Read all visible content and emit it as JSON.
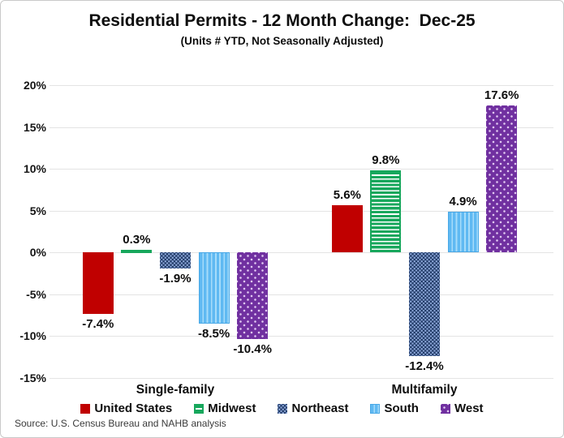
{
  "figure": {
    "title": "Residential Permits - 12 Month Change:  Dec-25",
    "subtitle": "(Units # YTD, Not Seasonally Adjusted)",
    "source": "Source: U.S. Census Bureau and NAHB analysis"
  },
  "colors": {
    "united_states": "#C00000",
    "midwest": "#17A75C",
    "northeast": "#1F3864",
    "south": "#5FB9F2",
    "west": "#7030A0",
    "gridline": "#E4E4E4",
    "border": "#C9C9C9"
  },
  "chart_data": {
    "type": "bar",
    "title": "Residential Permits - 12 Month Change:  Dec-25",
    "subtitle": "(Units # YTD, Not Seasonally Adjusted)",
    "categories": [
      "Single-family",
      "Multifamily"
    ],
    "series": [
      {
        "name": "United States",
        "color": "#C00000",
        "pattern": "solid",
        "values": [
          -7.4,
          5.6
        ]
      },
      {
        "name": "Midwest",
        "color": "#17A75C",
        "pattern": "horizontal-stripes",
        "values": [
          0.3,
          9.8
        ]
      },
      {
        "name": "Northeast",
        "color": "#1F3864",
        "pattern": "checker-dots",
        "values": [
          -1.9,
          -12.4
        ]
      },
      {
        "name": "South",
        "color": "#5FB9F2",
        "pattern": "vertical-stripes",
        "values": [
          -8.5,
          4.9
        ]
      },
      {
        "name": "West",
        "color": "#7030A0",
        "pattern": "dots",
        "values": [
          -10.4,
          17.6
        ]
      }
    ],
    "labels": [
      [
        "-7.4%",
        "0.3%",
        "-1.9%",
        "-8.5%",
        "-10.4%"
      ],
      [
        "5.6%",
        "9.8%",
        "-12.4%",
        "4.9%",
        "17.6%"
      ]
    ],
    "y_ticks": [
      "20%",
      "15%",
      "10%",
      "5%",
      "0%",
      "-5%",
      "-10%",
      "-15%"
    ],
    "y_tick_values": [
      20,
      15,
      10,
      5,
      0,
      -5,
      -10,
      -15
    ],
    "ylim": [
      -15,
      20
    ],
    "grid": true,
    "legend_position": "bottom"
  }
}
